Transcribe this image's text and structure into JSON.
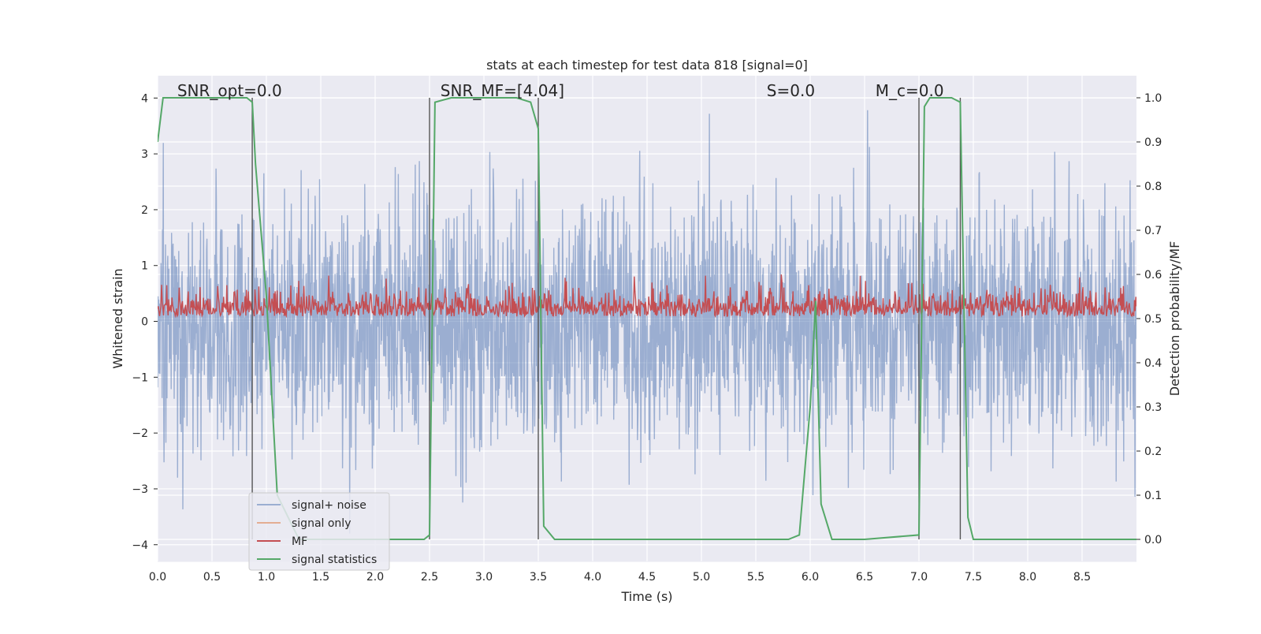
{
  "chart_data": {
    "type": "line",
    "title": "stats at each timestep for test data 818 [signal=0]",
    "xlabel": "Time (s)",
    "ylabel": "Whitened strain",
    "y2label": "Detection probability/MF",
    "xlim": [
      0.0,
      9.0
    ],
    "ylim": [
      -4.3,
      4.4
    ],
    "y2lim": [
      -0.05,
      1.05
    ],
    "xticks": [
      0.0,
      0.5,
      1.0,
      1.5,
      2.0,
      2.5,
      3.0,
      3.5,
      4.0,
      4.5,
      5.0,
      5.5,
      6.0,
      6.5,
      7.0,
      7.5,
      8.0,
      8.5
    ],
    "xtick_labels": [
      "0.0",
      "0.5",
      "1.0",
      "1.5",
      "2.0",
      "2.5",
      "3.0",
      "3.5",
      "4.0",
      "4.5",
      "5.0",
      "5.5",
      "6.0",
      "6.5",
      "7.0",
      "7.5",
      "8.0",
      "8.5"
    ],
    "yticks": [
      -4,
      -3,
      -2,
      -1,
      0,
      1,
      2,
      3,
      4
    ],
    "ytick_labels": [
      "−4",
      "−3",
      "−2",
      "−1",
      "0",
      "1",
      "2",
      "3",
      "4"
    ],
    "y2ticks": [
      0.0,
      0.1,
      0.2,
      0.3,
      0.4,
      0.5,
      0.6,
      0.7,
      0.8,
      0.9,
      1.0
    ],
    "y2tick_labels": [
      "0.0",
      "0.1",
      "0.2",
      "0.3",
      "0.4",
      "0.5",
      "0.6",
      "0.7",
      "0.8",
      "0.9",
      "1.0"
    ],
    "annotations": [
      {
        "text": "SNR_opt=0.0",
        "x": 0.18
      },
      {
        "text": "SNR_MF=[4.04]",
        "x": 2.6
      },
      {
        "text": "S=0.0",
        "x": 5.6
      },
      {
        "text": "M_c=0.0",
        "x": 6.6
      }
    ],
    "series": [
      {
        "name": "signal+ noise",
        "axis": "left",
        "color": "#4c72b0",
        "description": "noise band roughly -2.5 to 2.5 with peaks to about +/-3.8"
      },
      {
        "name": "signal only",
        "axis": "left",
        "color": "#dd8452",
        "values": []
      },
      {
        "name": "MF",
        "axis": "right",
        "color": "#c44e52",
        "description": "fluctuates between about 0.50 and 0.60"
      },
      {
        "name": "signal statistics",
        "axis": "right",
        "color": "#55a868",
        "x": [
          0.0,
          0.05,
          0.2,
          0.5,
          0.82,
          0.87,
          0.9,
          1.0,
          1.1,
          1.3,
          2.0,
          2.45,
          2.5,
          2.55,
          2.7,
          3.0,
          3.3,
          3.43,
          3.5,
          3.55,
          3.65,
          4.0,
          5.0,
          5.8,
          5.9,
          6.0,
          6.05,
          6.1,
          6.2,
          6.5,
          7.0,
          7.05,
          7.1,
          7.3,
          7.38,
          7.45,
          7.5,
          8.0,
          9.0
        ],
        "y": [
          0.9,
          1.0,
          1.0,
          1.0,
          1.0,
          0.99,
          0.85,
          0.55,
          0.1,
          0.0,
          0.0,
          0.0,
          0.01,
          0.99,
          1.0,
          1.0,
          1.0,
          0.99,
          0.93,
          0.03,
          0.0,
          0.0,
          0.0,
          0.0,
          0.01,
          0.3,
          0.54,
          0.08,
          0.0,
          0.0,
          0.01,
          0.98,
          1.0,
          1.0,
          0.99,
          0.05,
          0.0,
          0.0,
          0.0
        ]
      }
    ],
    "vlines": [
      0.87,
      2.5,
      3.5,
      7.0,
      7.38
    ],
    "legend": {
      "position": "lower-left",
      "entries": [
        {
          "label": "signal+ noise",
          "color": "#4c72b0"
        },
        {
          "label": "signal only",
          "color": "#dd8452"
        },
        {
          "label": "MF",
          "color": "#c44e52"
        },
        {
          "label": "signal statistics",
          "color": "#55a868"
        }
      ]
    }
  }
}
